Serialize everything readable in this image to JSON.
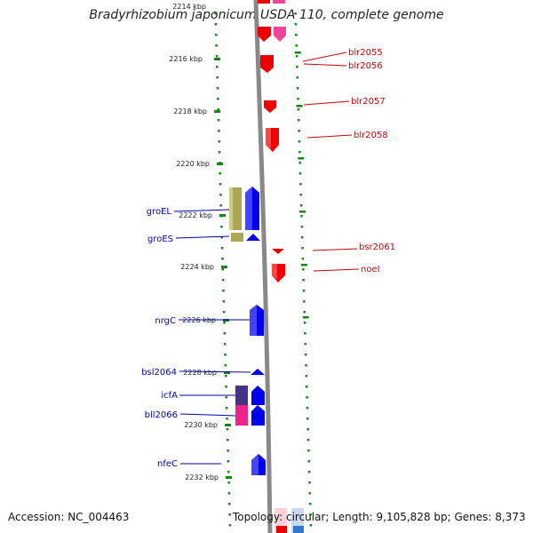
{
  "title": "Bradyrhizobium japonicum USDA 110, complete genome",
  "footer": {
    "accession": "Accession: NC_004463",
    "summary": "Topology: circular; Length: 9,105,828 bp; Genes: 8,373"
  },
  "colors": {
    "forward_gene": "#0000ee",
    "reverse_gene": "#ee0000",
    "label_forward": "#0000aa",
    "label_reverse": "#cc0000",
    "tick_dots": "#118811",
    "axis": "#888888"
  },
  "ruler": [
    {
      "label": "2214 kbp"
    },
    {
      "label": "2216 kbp"
    },
    {
      "label": "2218 kbp"
    },
    {
      "label": "2220 kbp"
    },
    {
      "label": "2222 kbp"
    },
    {
      "label": "2224 kbp"
    },
    {
      "label": "2226 kbp"
    },
    {
      "label": "2228 kbp"
    },
    {
      "label": "2230 kbp"
    },
    {
      "label": "2232 kbp"
    }
  ],
  "left_labels": [
    "groEL",
    "groES",
    "nrgC",
    "bsl2064",
    "icfA",
    "bll2066",
    "nfeC"
  ],
  "right_labels": [
    "blr2055",
    "blr2056",
    "blr2057",
    "blr2058",
    "bsr2061",
    "noeI"
  ]
}
